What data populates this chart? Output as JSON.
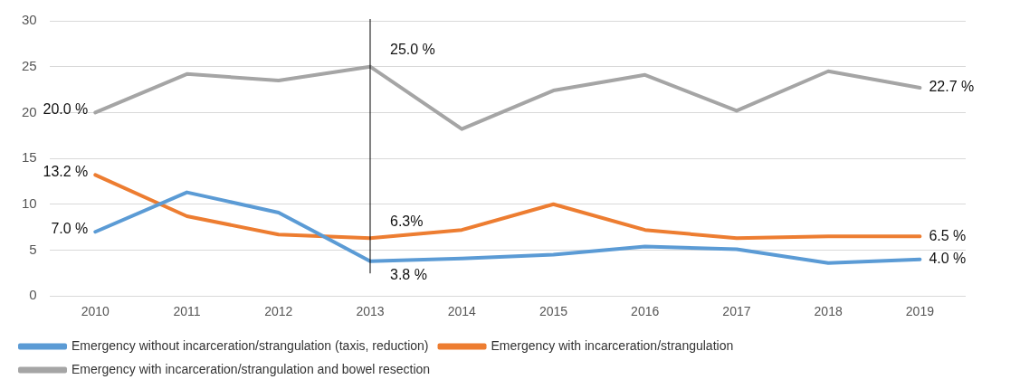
{
  "chart_data": {
    "type": "line",
    "categories": [
      "2010",
      "2011",
      "2012",
      "2013",
      "2014",
      "2015",
      "2016",
      "2017",
      "2018",
      "2019"
    ],
    "series": [
      {
        "name": "Emergency without incarceration/strangulation (taxis, reduction)",
        "color": "#5b9bd5",
        "values": [
          7.0,
          11.3,
          9.1,
          3.8,
          4.1,
          4.5,
          5.4,
          5.1,
          3.6,
          4.0
        ]
      },
      {
        "name": "Emergency with incarceration/strangulation",
        "color": "#ed7d31",
        "values": [
          13.2,
          8.7,
          6.7,
          6.3,
          7.2,
          10.0,
          7.2,
          6.3,
          6.5,
          6.5
        ]
      },
      {
        "name": "Emergency with incarceration/strangulation and bowel resection",
        "color": "#a5a5a5",
        "values": [
          20.0,
          24.2,
          23.5,
          25.0,
          18.2,
          22.4,
          24.1,
          20.2,
          24.5,
          22.7
        ]
      }
    ],
    "ylim": [
      0,
      30
    ],
    "yticks": [
      0,
      5,
      10,
      15,
      20,
      25,
      30
    ],
    "grid": "y",
    "legend": "bottom",
    "marker": "none",
    "line_style": "solid",
    "ref_lines": [
      {
        "axis": "x",
        "value": "2013",
        "color": "#000000"
      }
    ],
    "annotations": [
      {
        "text": "20.0 %",
        "x": "2010",
        "y": 20.0
      },
      {
        "text": "13.2 %",
        "x": "2010",
        "y": 13.2
      },
      {
        "text": "7.0 %",
        "x": "2010",
        "y": 7.0
      },
      {
        "text": "25.0 %",
        "x": "2013",
        "y": 25.0
      },
      {
        "text": "6.3%",
        "x": "2013",
        "y": 6.3
      },
      {
        "text": "3.8 %",
        "x": "2013",
        "y": 3.8
      },
      {
        "text": "22.7 %",
        "x": "2019",
        "y": 22.7
      },
      {
        "text": "6.5 %",
        "x": "2019",
        "y": 6.5
      },
      {
        "text": "4.0 %",
        "x": "2019",
        "y": 4.0
      }
    ]
  }
}
